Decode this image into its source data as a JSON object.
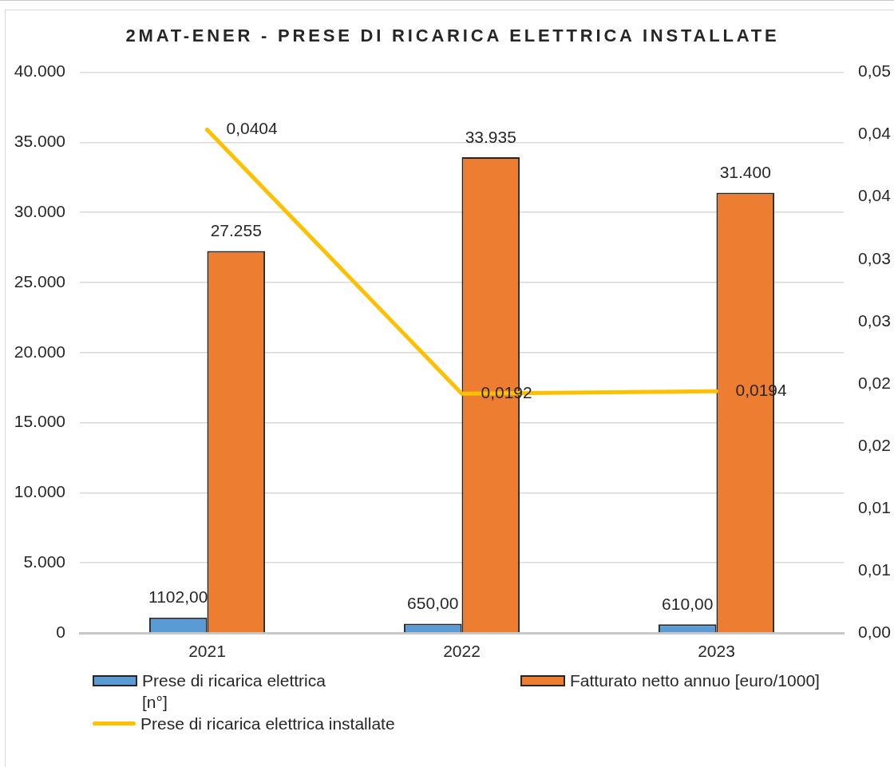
{
  "chart_data": {
    "type": "bar",
    "title": "2MAT-ENER - PRESE DI RICARICA ELETTRICA INSTALLATE",
    "categories": [
      "2021",
      "2022",
      "2023"
    ],
    "series": [
      {
        "name": "Prese di ricarica elettrica [n°]",
        "color": "#5b9bd5",
        "values": [
          1102,
          650,
          610
        ],
        "value_labels": [
          "1102,00",
          "650,00",
          "610,00"
        ]
      },
      {
        "name": "Fatturato netto annuo [euro/1000]",
        "color": "#ed7d31",
        "values": [
          27255,
          33935,
          31400
        ],
        "value_labels": [
          "27.255",
          "33.935",
          "31.400"
        ]
      },
      {
        "name": "Prese di ricarica elettrica installate",
        "type": "line",
        "axis": "y2",
        "color": "#ffc000",
        "values": [
          0.0404,
          0.0192,
          0.0194
        ],
        "value_labels": [
          "0,0404",
          "0,0192",
          "0,0194"
        ]
      }
    ],
    "ylim": [
      0,
      40000
    ],
    "yticks": [
      0,
      {
        "value": 5000,
        "label": "5.000"
      },
      {
        "value": 10000,
        "label": "10.000"
      },
      {
        "value": 15000,
        "label": "15.000"
      },
      {
        "value": 20000,
        "label": "20.000"
      },
      {
        "value": 25000,
        "label": "25.000"
      },
      {
        "value": 30000,
        "label": "30.000"
      },
      {
        "value": 35000,
        "label": "35.000"
      },
      {
        "value": 40000,
        "label": "40.000"
      }
    ],
    "y2lim": [
      0,
      0.045
    ],
    "y2ticks": [
      {
        "value": 0,
        "label": "0,00"
      },
      {
        "value": 0.005,
        "label": "0,01"
      },
      {
        "value": 0.01,
        "label": "0,01"
      },
      {
        "value": 0.015,
        "label": "0,02"
      },
      {
        "value": 0.02,
        "label": "0,02"
      },
      {
        "value": 0.025,
        "label": "0,03"
      },
      {
        "value": 0.03,
        "label": "0,03"
      },
      {
        "value": 0.035,
        "label": "0,04"
      },
      {
        "value": 0.04,
        "label": "0,04"
      },
      {
        "value": 0.045,
        "label": "0,05"
      }
    ],
    "grid": "y",
    "legend": "bottom",
    "marker": "none",
    "line_style": "solid"
  }
}
